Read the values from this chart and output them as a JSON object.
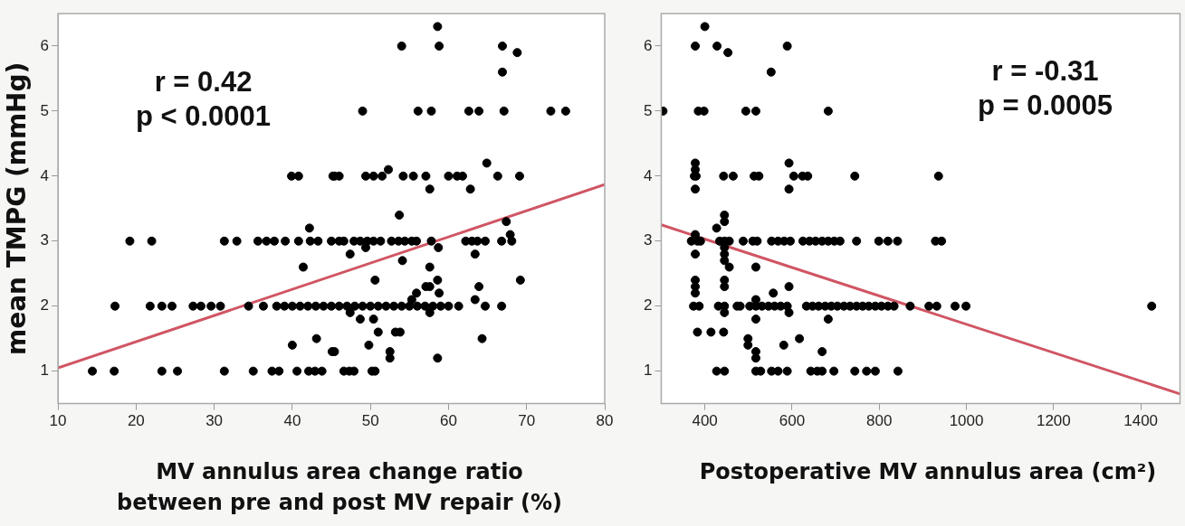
{
  "chart_data": [
    {
      "type": "scatter",
      "xlabel": "MV annulus area change ratio between pre and post MV repair (%)",
      "ylabel": "mean TMPG (mmHg)",
      "annotations": [
        "r = 0.42",
        "p < 0.0001"
      ],
      "xlim": [
        10,
        80
      ],
      "xticks": [
        10,
        20,
        30,
        40,
        50,
        60,
        70,
        80
      ],
      "ylim": [
        0.5,
        6.5
      ],
      "yticks": [
        1,
        2,
        3,
        4,
        5,
        6
      ],
      "grid": false,
      "legend": false,
      "series": [
        {
          "marker": "circle",
          "color": "#000000",
          "x": [
            14.4,
            17.2,
            23.3,
            25.3,
            31.3,
            35,
            37.4,
            38.3,
            40.6,
            42.1,
            42.9,
            43.8,
            46.6,
            47.3,
            47.9,
            50.2,
            50.6,
            17.3,
            21.8,
            23.3,
            24.6,
            27.3,
            28.3,
            29.6,
            30.8,
            34.4,
            36.3,
            38,
            39,
            40,
            41,
            42,
            43,
            44,
            45,
            46,
            47,
            48,
            49,
            50,
            51,
            52,
            53,
            54,
            55,
            56,
            57,
            58,
            59,
            60,
            61.3,
            64.7,
            66.8,
            19.2,
            22,
            31.3,
            32.9,
            35.6,
            36.7,
            37.7,
            39.1,
            40.8,
            42.3,
            43.3,
            45,
            46,
            46.6,
            47.9,
            48.7,
            49.6,
            50.4,
            51.3,
            52.7,
            53.6,
            54.4,
            55.3,
            55.9,
            57.8,
            62.2,
            63,
            63.7,
            64.7,
            66.8,
            68.1,
            39.9,
            40.8,
            45.2,
            45.4,
            46,
            49.4,
            50.4,
            51.5,
            54.2,
            55.5,
            57.1,
            60,
            61.1,
            61.8,
            66.3,
            69.1,
            49,
            56.1,
            57.8,
            62.6,
            63.9,
            67.1,
            73.1,
            75,
            54,
            58.8,
            66.9,
            58.6,
            68.8,
            66.9,
            64.9,
            52.3,
            57.6,
            62.8,
            53.7,
            67.4,
            67.9,
            42.2,
            41.4,
            58.7,
            49.4,
            47.4,
            63.4,
            54.1,
            57.6,
            50.6,
            58.6,
            69.2,
            57.1,
            57.6,
            63.9,
            55.9,
            58.8,
            55.3,
            63.4,
            47.4,
            57.6,
            48.7,
            50.4,
            51,
            53.2,
            53.8,
            64.3,
            49.8,
            45.4,
            52.5,
            52.5,
            58.6,
            40,
            43.1,
            45.1
          ],
          "values": [
            1,
            1,
            1,
            1,
            1,
            1,
            1,
            1,
            1,
            1,
            1,
            1,
            1,
            1,
            1,
            1,
            1,
            2,
            2,
            2,
            2,
            2,
            2,
            2,
            2,
            2,
            2,
            2,
            2,
            2,
            2,
            2,
            2,
            2,
            2,
            2,
            2,
            2,
            2,
            2,
            2,
            2,
            2,
            2,
            2,
            2,
            2,
            2,
            2,
            2,
            2,
            2,
            2,
            3,
            3,
            3,
            3,
            3,
            3,
            3,
            3,
            3,
            3,
            3,
            3,
            3,
            3,
            3,
            3,
            3,
            3,
            3,
            3,
            3,
            3,
            3,
            3,
            3,
            3,
            3,
            3,
            3,
            3,
            3,
            4,
            4,
            4,
            4,
            4,
            4,
            4,
            4,
            4,
            4,
            4,
            4,
            4,
            4,
            4,
            4,
            5,
            5,
            5,
            5,
            5,
            5,
            5,
            5,
            6,
            6,
            6,
            6.3,
            5.9,
            5.6,
            4.2,
            4.1,
            3.8,
            3.8,
            3.4,
            3.3,
            3.1,
            3.2,
            2.6,
            2.9,
            2.9,
            2.8,
            2.8,
            2.7,
            2.6,
            2.4,
            2.4,
            2.4,
            2.3,
            2.3,
            2.3,
            2.2,
            2.2,
            2.1,
            2.1,
            1.9,
            1.9,
            1.8,
            1.8,
            1.6,
            1.6,
            1.6,
            1.5,
            1.4,
            1.3,
            1.3,
            1.2,
            1.2,
            1.4,
            1.5,
            1.3
          ]
        },
        {
          "type": "line",
          "marker": "none",
          "color": "#d05563",
          "x": [
            10,
            80
          ],
          "values": [
            1.05,
            3.87
          ]
        }
      ]
    },
    {
      "type": "scatter",
      "xlabel": "Postoperative MV annulus area (cm²)",
      "annotations": [
        "r = -0.31",
        "p = 0.0005"
      ],
      "xlim": [
        300,
        1490
      ],
      "xticks": [
        400,
        600,
        800,
        1000,
        1200,
        1400
      ],
      "ylim": [
        0.5,
        6.5
      ],
      "yticks": [
        1,
        2,
        3,
        4,
        5,
        6
      ],
      "grid": false,
      "legend": false,
      "series": [
        {
          "marker": "circle",
          "color": "#000000",
          "x": [
            400,
            378,
            428,
            589,
            453,
            552,
            304,
            385,
            398,
            494,
            517,
            683,
            378,
            593,
            378,
            376,
            380,
            443,
            465,
            513,
            524,
            604,
            624,
            636,
            744,
            936,
            378,
            593,
            445,
            445,
            427,
            378,
            369,
            383,
            390,
            434,
            445,
            456,
            488,
            510,
            520,
            553,
            568,
            582,
            596,
            625,
            640,
            654,
            669,
            683,
            697,
            710,
            748,
            799,
            820,
            842,
            929,
            943,
            445,
            378,
            445,
            445,
            456,
            517,
            378,
            445,
            378,
            445,
            593,
            378,
            557,
            517,
            374,
            387,
            431,
            445,
            474,
            481,
            503,
            517,
            531,
            546,
            560,
            574,
            589,
            633,
            647,
            661,
            676,
            690,
            704,
            719,
            733,
            748,
            762,
            776,
            791,
            805,
            820,
            834,
            871,
            914,
            932,
            974,
            999,
            1425,
            445,
            593,
            517,
            683,
            383,
            414,
            443,
            499,
            617,
            499,
            581,
            517,
            669,
            517,
            427,
            445,
            517,
            528,
            553,
            568,
            589,
            643,
            658,
            669,
            696,
            744,
            771,
            791,
            843
          ],
          "values": [
            6.3,
            6,
            6,
            6,
            5.9,
            5.6,
            5,
            5,
            5,
            5,
            5,
            5,
            4.2,
            4.2,
            4.1,
            4,
            4,
            4,
            4,
            4,
            4,
            4,
            4,
            4,
            4,
            4,
            3.8,
            3.8,
            3.4,
            3.3,
            3.2,
            3.1,
            3,
            3,
            3,
            3,
            3,
            3,
            3,
            3,
            3,
            3,
            3,
            3,
            3,
            3,
            3,
            3,
            3,
            3,
            3,
            3,
            3,
            3,
            3,
            3,
            3,
            3,
            2.9,
            2.8,
            2.8,
            2.7,
            2.6,
            2.6,
            2.4,
            2.4,
            2.3,
            2.3,
            2.3,
            2.2,
            2.2,
            2.1,
            2,
            2,
            2,
            2,
            2,
            2,
            2,
            2,
            2,
            2,
            2,
            2,
            2,
            2,
            2,
            2,
            2,
            2,
            2,
            2,
            2,
            2,
            2,
            2,
            2,
            2,
            2,
            2,
            2,
            2,
            2,
            2,
            2,
            2,
            1.9,
            1.9,
            1.8,
            1.8,
            1.6,
            1.6,
            1.6,
            1.5,
            1.5,
            1.4,
            1.4,
            1.3,
            1.3,
            1.2,
            1,
            1,
            1,
            1,
            1,
            1,
            1,
            1,
            1,
            1,
            1,
            1,
            1,
            1,
            1
          ]
        },
        {
          "type": "line",
          "marker": "none",
          "color": "#d05563",
          "x": [
            300,
            1490
          ],
          "values": [
            3.25,
            0.65
          ]
        }
      ]
    }
  ]
}
